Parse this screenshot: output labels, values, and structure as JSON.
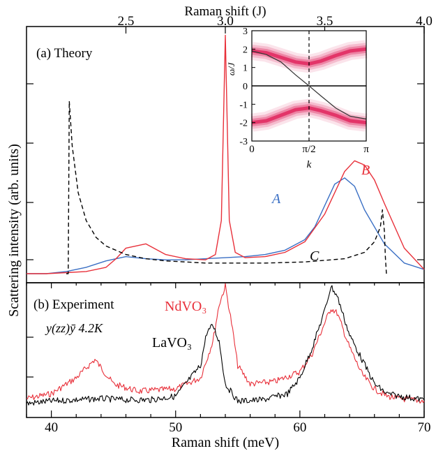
{
  "figure": {
    "top_axis_label": "Raman shift (J)",
    "bottom_axis_label": "Raman shift (meV)",
    "y_axis_label": "Scattering intensity (arb. units)",
    "panel_a_label": "(a)  Theory",
    "panel_b_label": "(b) Experiment",
    "polarization_label": "y(zz)ȳ  4.2K",
    "nd_label": "NdVO₃",
    "la_label": "LaVO₃",
    "label_A": "A",
    "label_B": "B",
    "label_C": "C",
    "inset_ylabel": "ω/J",
    "inset_xlabel": "k"
  },
  "colors": {
    "blue": "#3a6fc4",
    "red": "#e8303a",
    "black": "#000000",
    "inset_band": "#e0205a"
  },
  "chart_data": [
    {
      "type": "line",
      "panel": "a",
      "title": "(a)  Theory",
      "xlabel": "Raman shift (J)",
      "ylabel": "Scattering intensity (arb. units)",
      "xlim": [
        2.0,
        4.0
      ],
      "x_ticks": [
        2.5,
        3.0,
        3.5,
        4.0
      ],
      "bottom_axis": {
        "label": "Raman shift (meV)",
        "xlim": [
          38,
          70
        ],
        "ticks": [
          40,
          50,
          60,
          70
        ]
      },
      "series": [
        {
          "name": "A",
          "color": "blue",
          "x": [
            2.0,
            2.1,
            2.2,
            2.3,
            2.4,
            2.5,
            2.6,
            2.7,
            2.8,
            2.9,
            3.0,
            3.1,
            3.2,
            3.3,
            3.4,
            3.45,
            3.5,
            3.55,
            3.6,
            3.65,
            3.7,
            3.8,
            3.9,
            4.0
          ],
          "values": [
            0.0,
            0.0,
            0.01,
            0.03,
            0.06,
            0.08,
            0.07,
            0.065,
            0.065,
            0.07,
            0.075,
            0.08,
            0.09,
            0.11,
            0.16,
            0.22,
            0.32,
            0.42,
            0.45,
            0.41,
            0.3,
            0.14,
            0.05,
            0.02
          ]
        },
        {
          "name": "B",
          "color": "red",
          "x": [
            2.0,
            2.1,
            2.2,
            2.3,
            2.4,
            2.45,
            2.5,
            2.6,
            2.7,
            2.8,
            2.9,
            2.95,
            2.98,
            3.0,
            3.02,
            3.05,
            3.1,
            3.2,
            3.3,
            3.4,
            3.5,
            3.6,
            3.65,
            3.7,
            3.75,
            3.8,
            3.9,
            4.0
          ],
          "values": [
            0.0,
            0.0,
            0.005,
            0.01,
            0.03,
            0.07,
            0.12,
            0.14,
            0.09,
            0.07,
            0.065,
            0.09,
            0.25,
            1.12,
            0.25,
            0.1,
            0.075,
            0.08,
            0.1,
            0.15,
            0.28,
            0.48,
            0.53,
            0.51,
            0.44,
            0.33,
            0.12,
            0.02
          ]
        },
        {
          "name": "C",
          "color": "black",
          "dashed": true,
          "x": [
            2.2,
            2.21,
            2.215,
            2.23,
            2.26,
            2.3,
            2.35,
            2.4,
            2.5,
            2.6,
            2.7,
            2.8,
            2.9,
            3.0,
            3.2,
            3.4,
            3.6,
            3.7,
            3.75,
            3.78,
            3.79,
            3.8,
            3.805,
            3.81
          ],
          "values": [
            0.0,
            0.0,
            0.81,
            0.6,
            0.38,
            0.25,
            0.17,
            0.13,
            0.09,
            0.07,
            0.06,
            0.055,
            0.05,
            0.05,
            0.05,
            0.055,
            0.07,
            0.1,
            0.15,
            0.22,
            0.3,
            0.2,
            0.08,
            0.0
          ]
        }
      ]
    },
    {
      "type": "line",
      "panel": "b",
      "title": "(b) Experiment",
      "xlabel": "Raman shift (meV)",
      "xlim": [
        38,
        70
      ],
      "x_ticks": [
        40,
        50,
        60,
        70
      ],
      "series": [
        {
          "name": "NdVO₃",
          "color": "red",
          "x": [
            38,
            40,
            42,
            43.5,
            45,
            47,
            50,
            52,
            53,
            53.5,
            54,
            54.5,
            55,
            56,
            58,
            60,
            61,
            62,
            62.5,
            63,
            64,
            65,
            66,
            67,
            68,
            70
          ],
          "values": [
            0.08,
            0.12,
            0.25,
            0.4,
            0.2,
            0.14,
            0.16,
            0.25,
            0.55,
            0.85,
            1.0,
            0.7,
            0.35,
            0.2,
            0.22,
            0.3,
            0.45,
            0.7,
            0.82,
            0.78,
            0.5,
            0.28,
            0.16,
            0.1,
            0.08,
            0.06
          ]
        },
        {
          "name": "LaVO₃",
          "color": "black",
          "x": [
            38,
            40,
            42,
            44,
            46,
            48,
            50,
            52,
            52.5,
            53,
            53.5,
            54,
            55,
            57,
            59,
            60,
            61,
            62,
            62.5,
            63,
            64,
            65,
            66,
            67,
            68,
            70
          ],
          "values": [
            0.04,
            0.06,
            0.07,
            0.08,
            0.07,
            0.07,
            0.1,
            0.35,
            0.62,
            0.68,
            0.55,
            0.2,
            0.06,
            0.07,
            0.12,
            0.25,
            0.5,
            0.8,
            1.0,
            0.92,
            0.6,
            0.4,
            0.2,
            0.12,
            0.1,
            0.07
          ]
        }
      ]
    },
    {
      "type": "heatmap",
      "panel": "inset",
      "xlabel": "k",
      "ylabel": "ω/J",
      "xlim": [
        0,
        3.1416
      ],
      "ylim": [
        -3,
        3
      ],
      "x_ticks": [
        "0",
        "π/2",
        "π"
      ],
      "y_ticks": [
        3,
        2,
        1,
        0,
        -1,
        -2,
        -3
      ],
      "dashed_line_x": 1.5708,
      "bands": [
        {
          "name": "upper",
          "k": [
            0,
            0.4,
            0.8,
            1.2,
            1.57,
            1.9,
            2.3,
            2.7,
            3.14
          ],
          "omega": [
            1.9,
            1.8,
            1.55,
            1.3,
            1.2,
            1.35,
            1.65,
            1.9,
            2.0
          ]
        },
        {
          "name": "lower",
          "k": [
            0,
            0.4,
            0.8,
            1.2,
            1.57,
            1.9,
            2.3,
            2.7,
            3.14
          ],
          "omega": [
            -2.0,
            -1.9,
            -1.6,
            -1.3,
            -1.2,
            -1.35,
            -1.6,
            -1.9,
            -2.0
          ]
        }
      ],
      "curve": {
        "k": [
          0,
          0.4,
          0.8,
          1.2,
          1.57,
          1.9,
          2.3,
          2.7,
          3.14
        ],
        "omega": [
          1.9,
          1.7,
          1.3,
          0.6,
          0.0,
          -0.55,
          -1.2,
          -1.65,
          -1.8
        ]
      }
    }
  ]
}
